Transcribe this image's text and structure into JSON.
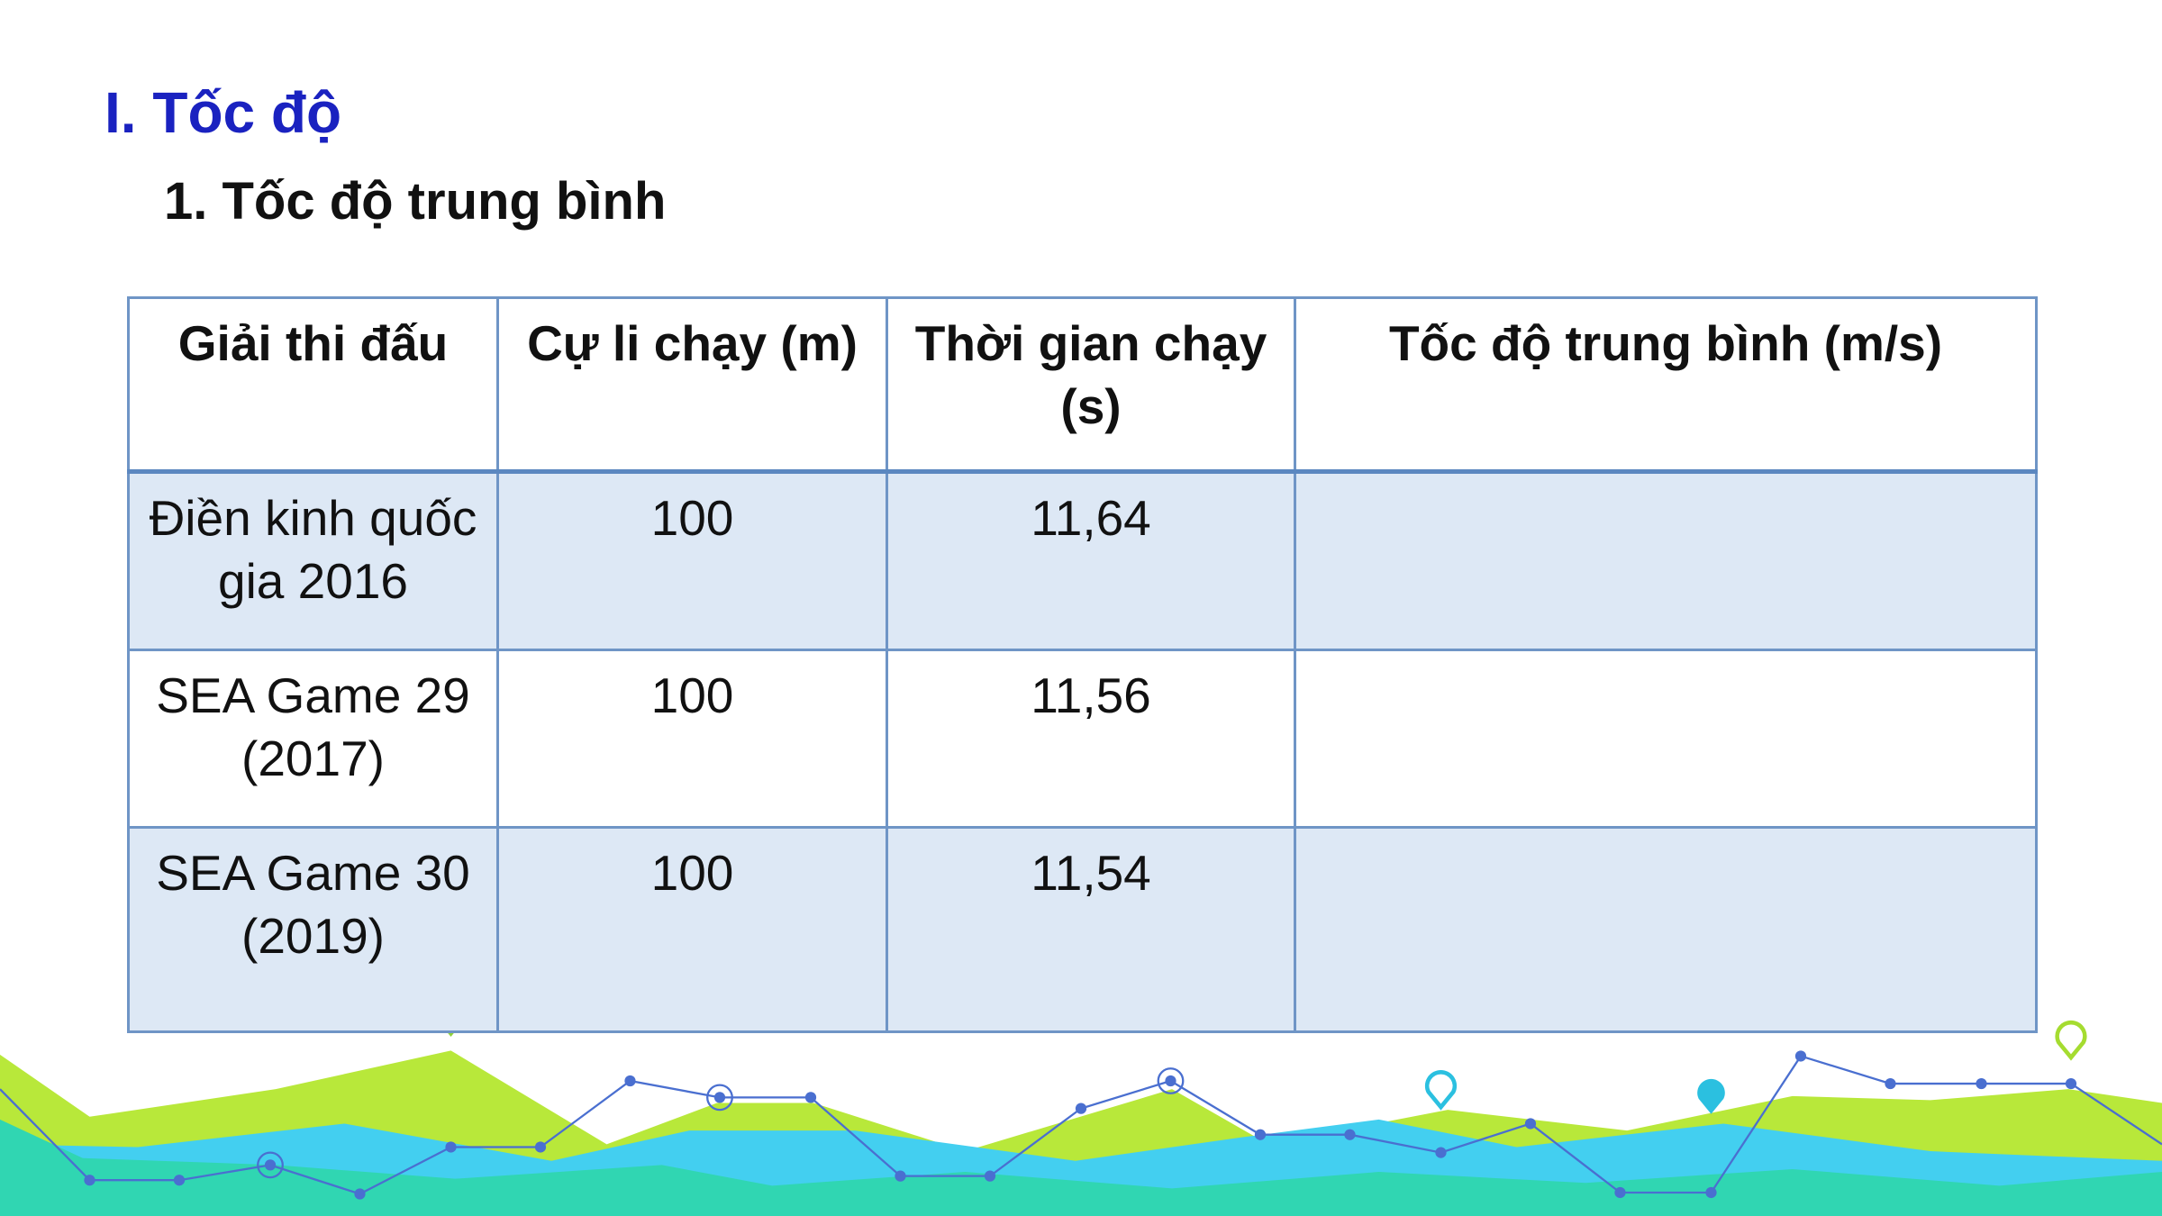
{
  "header": {
    "title": "I. Tốc độ",
    "subtitle": "1. Tốc độ trung bình"
  },
  "table": {
    "columns": [
      "Giải thi đấu",
      "Cự li chạy (m)",
      "Thời gian chạy (s)",
      "Tốc độ trung bình (m/s)"
    ],
    "rows": [
      [
        "Điền kinh quốc gia 2016",
        "100",
        "11,64"
      ],
      [
        "SEA Game 29 (2017)",
        "100",
        "11,56"
      ],
      [
        "SEA Game 30 (2019)",
        "100",
        "11,54"
      ]
    ]
  }
}
